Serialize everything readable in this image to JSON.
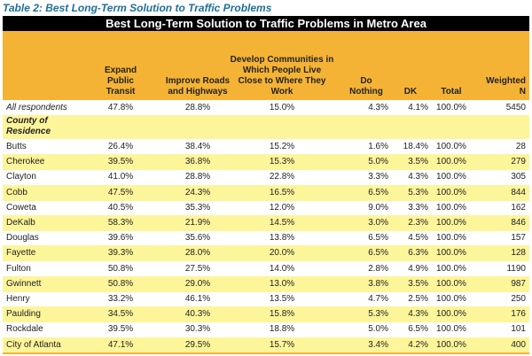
{
  "caption": "Table 2: Best Long-Term Solution to Traffic Problems",
  "banner": "Best Long-Term Solution to Traffic Problems in Metro Area",
  "columns": [
    "Expand Public Transit",
    "Improve Roads and Highways",
    "Develop Communities in Which People Live Close to Where They Work",
    "Do Nothing",
    "DK",
    "Total",
    "Weighted N"
  ],
  "all_respondents": {
    "label": "All respondents",
    "values": [
      "47.8%",
      "28.8%",
      "15.0%",
      "4.3%",
      "4.1%",
      "100.0%",
      "5450"
    ]
  },
  "section_label": "County of Residence",
  "rows": [
    {
      "label": "Butts",
      "values": [
        "26.4%",
        "38.4%",
        "15.2%",
        "1.6%",
        "18.4%",
        "100.0%",
        "28"
      ]
    },
    {
      "label": "Cherokee",
      "values": [
        "39.5%",
        "36.8%",
        "15.3%",
        "5.0%",
        "3.5%",
        "100.0%",
        "279"
      ]
    },
    {
      "label": "Clayton",
      "values": [
        "41.0%",
        "28.8%",
        "22.8%",
        "3.3%",
        "4.3%",
        "100.0%",
        "305"
      ]
    },
    {
      "label": "Cobb",
      "values": [
        "47.5%",
        "24.3%",
        "16.5%",
        "6.5%",
        "5.3%",
        "100.0%",
        "844"
      ]
    },
    {
      "label": "Coweta",
      "values": [
        "40.5%",
        "35.3%",
        "12.0%",
        "9.0%",
        "3.3%",
        "100.0%",
        "162"
      ]
    },
    {
      "label": "DeKalb",
      "values": [
        "58.3%",
        "21.9%",
        "14.5%",
        "3.0%",
        "2.3%",
        "100.0%",
        "846"
      ]
    },
    {
      "label": "Douglas",
      "values": [
        "39.6%",
        "35.6%",
        "13.8%",
        "6.5%",
        "4.5%",
        "100.0%",
        "157"
      ]
    },
    {
      "label": "Fayette",
      "values": [
        "39.3%",
        "28.0%",
        "20.0%",
        "6.5%",
        "6.3%",
        "100.0%",
        "128"
      ]
    },
    {
      "label": "Fulton",
      "values": [
        "50.8%",
        "27.5%",
        "14.0%",
        "2.8%",
        "4.9%",
        "100.0%",
        "1190"
      ]
    },
    {
      "label": "Gwinnett",
      "values": [
        "50.8%",
        "29.0%",
        "13.0%",
        "3.8%",
        "3.5%",
        "100.0%",
        "987"
      ]
    },
    {
      "label": "Henry",
      "values": [
        "33.2%",
        "46.1%",
        "13.5%",
        "4.7%",
        "2.5%",
        "100.0%",
        "250"
      ]
    },
    {
      "label": "Paulding",
      "values": [
        "34.5%",
        "40.3%",
        "15.8%",
        "5.3%",
        "4.3%",
        "100.0%",
        "176"
      ]
    },
    {
      "label": "Rockdale",
      "values": [
        "39.5%",
        "30.3%",
        "18.8%",
        "5.0%",
        "6.5%",
        "100.0%",
        "101"
      ]
    },
    {
      "label": "City of Atlanta",
      "values": [
        "47.1%",
        "29.5%",
        "15.7%",
        "3.4%",
        "4.2%",
        "100.0%",
        "400"
      ]
    }
  ]
}
